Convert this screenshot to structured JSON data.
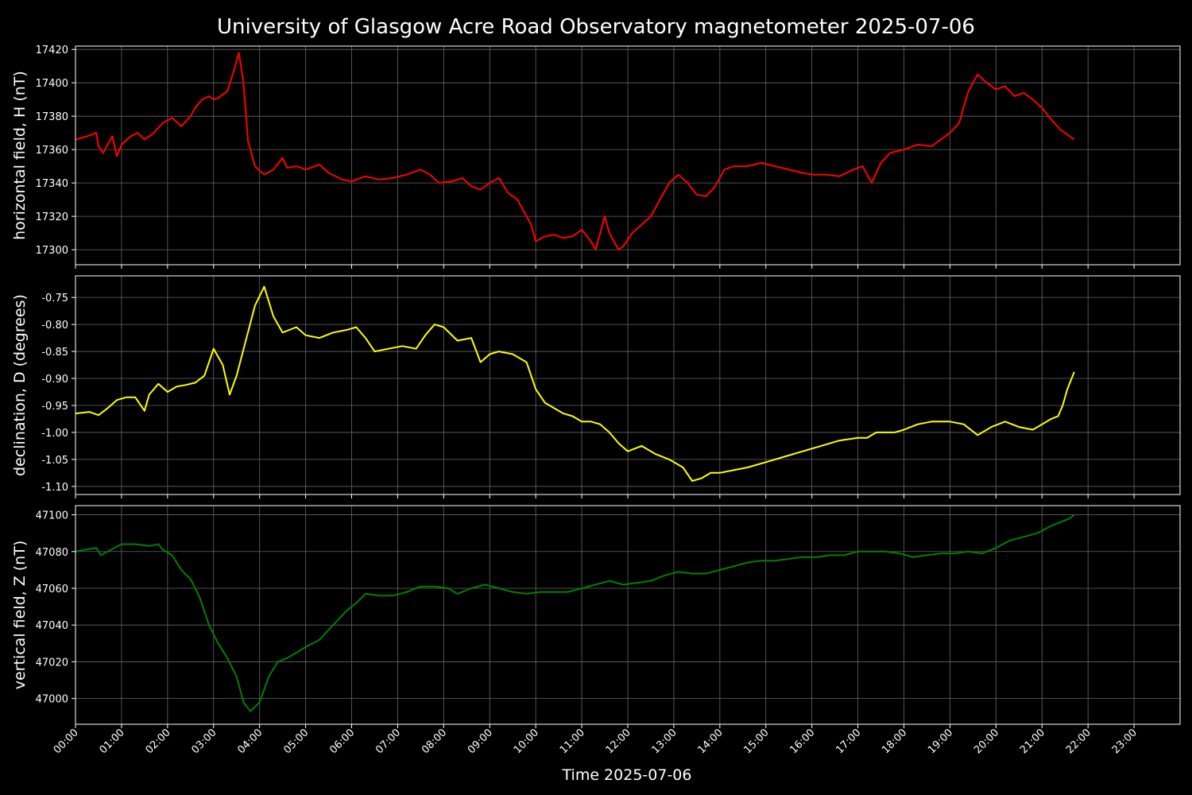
{
  "chart_data": {
    "type": "line",
    "title": "University of Glasgow Acre Road Observatory magnetometer 2025-07-06",
    "xlabel": "Time 2025-07-06",
    "x_ticks": [
      "00:00",
      "01:00",
      "02:00",
      "03:00",
      "04:00",
      "05:00",
      "06:00",
      "07:00",
      "08:00",
      "09:00",
      "10:00",
      "11:00",
      "12:00",
      "13:00",
      "14:00",
      "15:00",
      "16:00",
      "17:00",
      "18:00",
      "19:00",
      "20:00",
      "21:00",
      "22:00",
      "23:00"
    ],
    "xlim_hours": [
      0,
      24
    ],
    "grid": true,
    "panels": [
      {
        "ylabel": "horizontal field, H (nT)",
        "color": "#ff0000",
        "ylim": [
          17291,
          17422
        ],
        "y_ticks": [
          17300,
          17320,
          17340,
          17360,
          17380,
          17400,
          17420
        ],
        "tick_decimals": 0,
        "series": {
          "x": [
            0,
            0.25,
            0.45,
            0.5,
            0.6,
            0.8,
            0.9,
            1.0,
            1.2,
            1.35,
            1.5,
            1.7,
            1.9,
            2.1,
            2.3,
            2.5,
            2.6,
            2.75,
            2.9,
            3.0,
            3.1,
            3.3,
            3.45,
            3.55,
            3.65,
            3.75,
            3.9,
            4.1,
            4.3,
            4.5,
            4.6,
            4.8,
            5.0,
            5.3,
            5.5,
            5.8,
            6.0,
            6.3,
            6.6,
            6.9,
            7.2,
            7.5,
            7.7,
            7.9,
            8.2,
            8.4,
            8.6,
            8.8,
            9.0,
            9.2,
            9.4,
            9.6,
            9.9,
            10.0,
            10.2,
            10.4,
            10.6,
            10.8,
            11.0,
            11.2,
            11.3,
            11.4,
            11.5,
            11.6,
            11.7,
            11.8,
            11.9,
            12.1,
            12.3,
            12.5,
            12.7,
            12.9,
            13.1,
            13.3,
            13.5,
            13.7,
            13.9,
            14.1,
            14.3,
            14.6,
            14.9,
            15.2,
            15.5,
            15.8,
            16.0,
            16.3,
            16.6,
            16.9,
            17.1,
            17.3,
            17.5,
            17.7,
            18.0,
            18.3,
            18.6,
            18.8,
            19.0,
            19.2,
            19.4,
            19.6,
            19.8,
            20.0,
            20.2,
            20.4,
            20.6,
            20.8,
            21.0,
            21.2,
            21.4,
            21.6,
            21.7
          ],
          "y": [
            17366,
            17368,
            17370,
            17362,
            17358,
            17368,
            17356,
            17363,
            17368,
            17370,
            17366,
            17370,
            17376,
            17379,
            17374,
            17380,
            17385,
            17390,
            17392,
            17390,
            17391,
            17395,
            17408,
            17418,
            17400,
            17365,
            17350,
            17345,
            17348,
            17355,
            17349,
            17350,
            17348,
            17351,
            17346,
            17342,
            17341,
            17344,
            17342,
            17343,
            17345,
            17348,
            17345,
            17340,
            17341,
            17343,
            17338,
            17336,
            17340,
            17343,
            17334,
            17330,
            17315,
            17305,
            17308,
            17309,
            17307,
            17308,
            17312,
            17305,
            17300,
            17310,
            17320,
            17310,
            17305,
            17300,
            17302,
            17310,
            17315,
            17320,
            17330,
            17340,
            17345,
            17340,
            17333,
            17332,
            17338,
            17348,
            17350,
            17350,
            17352,
            17350,
            17348,
            17346,
            17345,
            17345,
            17344,
            17348,
            17350,
            17340,
            17352,
            17358,
            17360,
            17363,
            17362,
            17366,
            17370,
            17376,
            17395,
            17405,
            17400,
            17396,
            17398,
            17392,
            17394,
            17390,
            17385,
            17378,
            17372,
            17368,
            17366
          ]
        }
      },
      {
        "ylabel": "declination, D (degrees)",
        "color": "#ffff00",
        "ylim": [
          -1.115,
          -0.71
        ],
        "y_ticks": [
          -0.75,
          -0.8,
          -0.85,
          -0.9,
          -0.95,
          -1.0,
          -1.05,
          -1.1
        ],
        "tick_decimals": 2,
        "series": {
          "x": [
            0,
            0.3,
            0.5,
            0.7,
            0.9,
            1.1,
            1.3,
            1.5,
            1.6,
            1.8,
            2.0,
            2.2,
            2.4,
            2.6,
            2.8,
            3.0,
            3.2,
            3.35,
            3.5,
            3.7,
            3.9,
            4.1,
            4.3,
            4.5,
            4.8,
            5.0,
            5.3,
            5.6,
            5.9,
            6.1,
            6.3,
            6.5,
            6.8,
            7.1,
            7.4,
            7.6,
            7.8,
            8.0,
            8.3,
            8.6,
            8.8,
            9.0,
            9.2,
            9.5,
            9.8,
            10.0,
            10.2,
            10.4,
            10.6,
            10.8,
            11.0,
            11.2,
            11.4,
            11.6,
            11.8,
            12.0,
            12.3,
            12.6,
            12.9,
            13.2,
            13.4,
            13.6,
            13.8,
            14.0,
            14.3,
            14.6,
            15.0,
            15.4,
            15.8,
            16.2,
            16.6,
            17.0,
            17.2,
            17.4,
            17.8,
            18.0,
            18.3,
            18.6,
            19.0,
            19.3,
            19.6,
            19.9,
            20.2,
            20.5,
            20.8,
            21.0,
            21.2,
            21.35,
            21.45,
            21.55,
            21.7
          ],
          "y": [
            -0.965,
            -0.962,
            -0.968,
            -0.955,
            -0.94,
            -0.935,
            -0.935,
            -0.96,
            -0.93,
            -0.91,
            -0.925,
            -0.915,
            -0.912,
            -0.908,
            -0.895,
            -0.845,
            -0.875,
            -0.93,
            -0.895,
            -0.83,
            -0.765,
            -0.73,
            -0.785,
            -0.815,
            -0.805,
            -0.82,
            -0.825,
            -0.815,
            -0.81,
            -0.805,
            -0.825,
            -0.85,
            -0.845,
            -0.84,
            -0.845,
            -0.82,
            -0.8,
            -0.805,
            -0.83,
            -0.825,
            -0.87,
            -0.855,
            -0.85,
            -0.855,
            -0.87,
            -0.92,
            -0.945,
            -0.955,
            -0.965,
            -0.97,
            -0.98,
            -0.98,
            -0.985,
            -1.0,
            -1.02,
            -1.035,
            -1.025,
            -1.04,
            -1.05,
            -1.065,
            -1.09,
            -1.085,
            -1.075,
            -1.075,
            -1.07,
            -1.065,
            -1.055,
            -1.045,
            -1.035,
            -1.025,
            -1.015,
            -1.01,
            -1.01,
            -1.0,
            -1.0,
            -0.995,
            -0.985,
            -0.98,
            -0.98,
            -0.985,
            -1.005,
            -0.99,
            -0.98,
            -0.99,
            -0.995,
            -0.985,
            -0.975,
            -0.97,
            -0.95,
            -0.92,
            -0.888
          ]
        }
      },
      {
        "ylabel": "vertical field, Z (nT)",
        "color": "#008000",
        "ylim": [
          46986,
          47105
        ],
        "y_ticks": [
          47000,
          47020,
          47040,
          47060,
          47080,
          47100
        ],
        "tick_decimals": 0,
        "series": {
          "x": [
            0,
            0.2,
            0.45,
            0.55,
            0.7,
            1.0,
            1.3,
            1.6,
            1.8,
            1.9,
            2.1,
            2.3,
            2.5,
            2.7,
            2.9,
            3.1,
            3.3,
            3.5,
            3.65,
            3.8,
            4.0,
            4.2,
            4.4,
            4.6,
            4.8,
            5.0,
            5.3,
            5.6,
            5.9,
            6.1,
            6.3,
            6.6,
            6.9,
            7.2,
            7.5,
            7.8,
            8.1,
            8.3,
            8.6,
            8.9,
            9.2,
            9.5,
            9.8,
            10.1,
            10.4,
            10.7,
            11.0,
            11.3,
            11.6,
            11.9,
            12.2,
            12.5,
            12.8,
            13.1,
            13.4,
            13.7,
            14.0,
            14.3,
            14.6,
            14.9,
            15.2,
            15.5,
            15.8,
            16.1,
            16.4,
            16.7,
            17.0,
            17.3,
            17.6,
            17.9,
            18.2,
            18.5,
            18.8,
            19.1,
            19.4,
            19.7,
            20.0,
            20.3,
            20.6,
            20.9,
            21.2,
            21.4,
            21.6,
            21.7
          ],
          "y": [
            47080,
            47081,
            47082,
            47078,
            47080,
            47084,
            47084,
            47083,
            47084,
            47081,
            47078,
            47070,
            47065,
            47055,
            47040,
            47030,
            47022,
            47012,
            46998,
            46993,
            46998,
            47012,
            47020,
            47022,
            47025,
            47028,
            47032,
            47040,
            47048,
            47052,
            47057,
            47056,
            47056,
            47058,
            47061,
            47061,
            47060,
            47057,
            47060,
            47062,
            47060,
            47058,
            47057,
            47058,
            47058,
            47058,
            47060,
            47062,
            47064,
            47062,
            47063,
            47064,
            47067,
            47069,
            47068,
            47068,
            47070,
            47072,
            47074,
            47075,
            47075,
            47076,
            47077,
            47077,
            47078,
            47078,
            47080,
            47080,
            47080,
            47079,
            47077,
            47078,
            47079,
            47079,
            47080,
            47079,
            47082,
            47086,
            47088,
            47090,
            47094,
            47096,
            47098,
            47100
          ]
        }
      }
    ]
  }
}
